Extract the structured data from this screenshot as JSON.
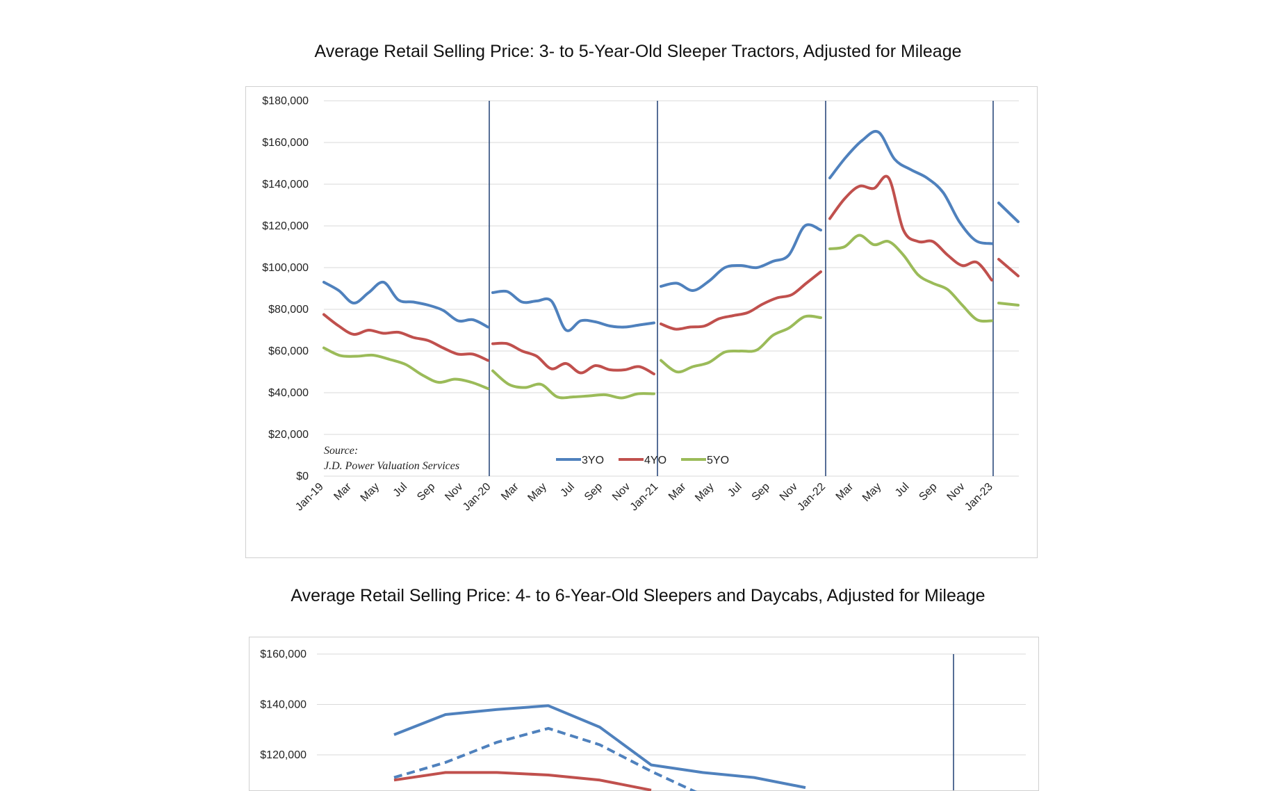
{
  "chart_data": [
    {
      "type": "line",
      "title": "Average Retail Selling Price: 3- to 5-Year-Old Sleeper Tractors, Adjusted for Mileage",
      "source_label": "Source:",
      "source_text": "J.D. Power Valuation Services",
      "ylim": [
        0,
        180000
      ],
      "yticks": [
        "$0",
        "$20,000",
        "$40,000",
        "$60,000",
        "$80,000",
        "$100,000",
        "$120,000",
        "$140,000",
        "$160,000",
        "$180,000"
      ],
      "xtick_labels": [
        "Jan-19",
        "Mar",
        "May",
        "Jul",
        "Sep",
        "Nov",
        "Jan-20",
        "Mar",
        "May",
        "Jul",
        "Sep",
        "Nov",
        "Jan-21",
        "Mar",
        "May",
        "Jul",
        "Sep",
        "Nov",
        "Jan-22",
        "Mar",
        "May",
        "Jul",
        "Sep",
        "Nov",
        "Jan-23"
      ],
      "grid": true,
      "legend_position": "bottom",
      "year_separators": [
        "Jan-20",
        "Jan-21",
        "Jan-22",
        "Jan-23"
      ],
      "series": [
        {
          "name": "3YO",
          "color": "#4f81bd",
          "segments": [
            [
              93000,
              89000,
              83000,
              88000,
              93000,
              84500,
              83500,
              82000,
              79500,
              74500,
              75000,
              71500
            ],
            [
              88000,
              88500,
              83500,
              84000,
              84000,
              70000,
              74500,
              74000,
              72000,
              71500,
              72500,
              73500
            ],
            [
              91000,
              92500,
              89000,
              93500,
              100000,
              101000,
              100000,
              103000,
              106000,
              120000,
              118000
            ],
            [
              143000,
              153000,
              161000,
              165000,
              152000,
              147000,
              143000,
              136000,
              122000,
              113000,
              111500
            ],
            [
              131000,
              122000
            ]
          ]
        },
        {
          "name": "4YO",
          "color": "#c0504d",
          "segments": [
            [
              77500,
              72000,
              68000,
              70000,
              68500,
              69000,
              66500,
              65000,
              61500,
              58500,
              58500,
              55500
            ],
            [
              63500,
              63500,
              60000,
              57500,
              51500,
              54000,
              49500,
              53000,
              51000,
              51000,
              52500,
              49000
            ],
            [
              73000,
              70500,
              71500,
              72000,
              75500,
              77000,
              78500,
              82500,
              85500,
              87000,
              92500,
              98000
            ],
            [
              123500,
              133000,
              139000,
              138000,
              143000,
              118000,
              112500,
              112500,
              106000,
              101000,
              102500,
              94000
            ],
            [
              104000,
              96000
            ]
          ]
        },
        {
          "name": "5YO",
          "color": "#9bbb59",
          "segments": [
            [
              61500,
              57800,
              57500,
              58000,
              56000,
              53500,
              48500,
              45000,
              46500,
              45000,
              42000
            ],
            [
              50500,
              44000,
              42500,
              44000,
              38000,
              38000,
              38500,
              39000,
              37500,
              39500,
              39500
            ],
            [
              55500,
              50000,
              52500,
              54500,
              59500,
              60000,
              60500,
              67500,
              71000,
              76500,
              76000
            ],
            [
              109000,
              110000,
              115500,
              111000,
              112500,
              106000,
              96500,
              92500,
              89500,
              82000,
              75000,
              74500
            ],
            [
              83000,
              82000
            ]
          ]
        }
      ]
    },
    {
      "type": "line",
      "title": "Average Retail Selling Price: 4- to 6-Year-Old Sleepers and Daycabs, Adjusted for Mileage",
      "visible_yticks": [
        "$120,000",
        "$140,000",
        "$160,000"
      ],
      "grid": true,
      "series": [
        {
          "color": "#4f81bd",
          "style": "solid",
          "values": [
            128000,
            136000,
            138000,
            139500,
            131000,
            116000,
            113000,
            111000,
            107000
          ]
        },
        {
          "color": "#4f81bd",
          "style": "dashed",
          "values": [
            111000,
            117000,
            125000,
            130500,
            124000,
            113500,
            104000
          ]
        },
        {
          "color": "#c0504d",
          "style": "solid",
          "values": [
            110000,
            113000,
            113000,
            112000,
            110000,
            106000
          ]
        }
      ]
    }
  ]
}
